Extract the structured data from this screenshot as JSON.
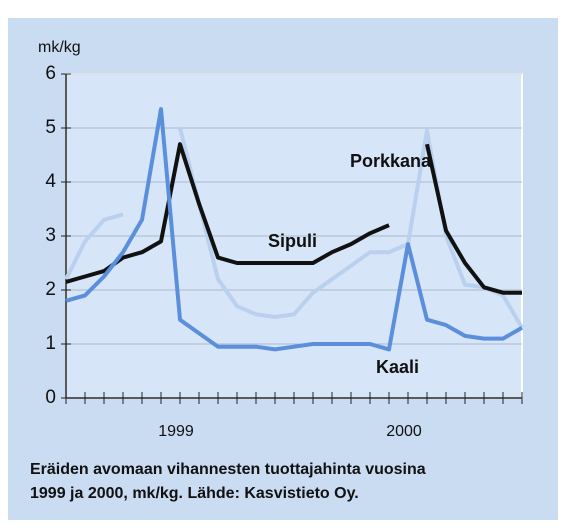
{
  "chart_data": {
    "type": "line",
    "y_label": "mk/kg",
    "caption": [
      "Eräiden avomaan vihannesten tuottajahinta vuosina",
      "1999 ja 2000, mk/kg.  Lähde: Kasvistieto Oy."
    ],
    "x": [
      0,
      1,
      2,
      3,
      4,
      5,
      6,
      7,
      8,
      9,
      10,
      11,
      12,
      13,
      14,
      15,
      16,
      17,
      18,
      19,
      20,
      21,
      22,
      23,
      24
    ],
    "xlim": [
      0,
      24
    ],
    "xticks": [
      0,
      1,
      2,
      3,
      4,
      5,
      6,
      7,
      8,
      9,
      10,
      11,
      12,
      13,
      14,
      15,
      16,
      17,
      18,
      19,
      20,
      21,
      22,
      23,
      24
    ],
    "xlabels": [
      {
        "value": 6,
        "label": "1999"
      },
      {
        "value": 18,
        "label": "2000"
      }
    ],
    "ylim": [
      0,
      6
    ],
    "yticks": [
      0,
      1,
      2,
      3,
      4,
      5,
      6
    ],
    "grid": true,
    "series": [
      {
        "name": "Porkkana",
        "color": "#b9d0ef",
        "values": [
          2.2,
          2.9,
          3.3,
          3.4,
          null,
          null,
          5.0,
          3.6,
          2.2,
          1.7,
          1.55,
          1.5,
          1.55,
          1.95,
          2.2,
          2.45,
          2.7,
          2.7,
          2.85,
          4.95,
          3.0,
          2.1,
          2.05,
          1.9,
          1.3
        ]
      },
      {
        "name": "Sipuli",
        "color": "#111111",
        "values": [
          2.15,
          2.25,
          2.35,
          2.6,
          2.7,
          2.9,
          4.7,
          3.6,
          2.6,
          2.5,
          2.5,
          2.5,
          2.5,
          2.5,
          2.7,
          2.85,
          3.05,
          3.2,
          null,
          4.7,
          3.1,
          2.5,
          2.05,
          1.95,
          1.95
        ]
      },
      {
        "name": "Kaali",
        "color": "#5b8fdb",
        "values": [
          1.8,
          1.9,
          2.25,
          2.7,
          3.3,
          5.35,
          1.45,
          1.2,
          0.95,
          0.95,
          0.95,
          0.9,
          0.95,
          1.0,
          1.0,
          1.0,
          1.0,
          0.9,
          2.85,
          1.45,
          1.35,
          1.15,
          1.1,
          1.1,
          1.3
        ]
      }
    ]
  }
}
